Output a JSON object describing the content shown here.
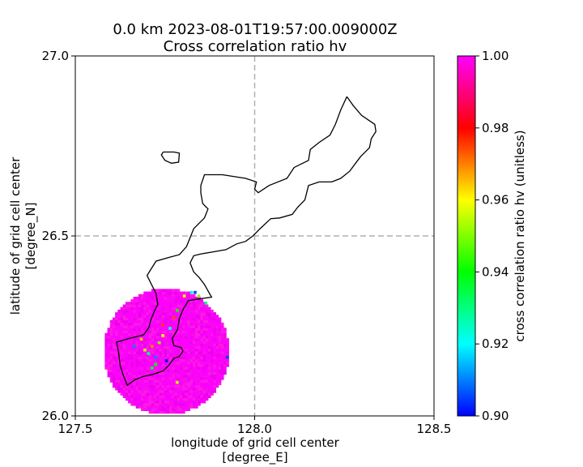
{
  "chart_data": {
    "type": "heatmap",
    "title_line1": "0.0 km 2023-08-01T19:57:00.009000Z",
    "title_line2": "Cross correlation ratio hv",
    "xlabel_line1": "longitude of grid cell center",
    "xlabel_line2": "[degree_E]",
    "ylabel_line1": "latitude of grid cell center",
    "ylabel_line2": "[degree_N]",
    "xlim": [
      127.5,
      128.5
    ],
    "ylim": [
      26.0,
      27.0
    ],
    "x_ticks": [
      127.5,
      128.0,
      128.5
    ],
    "x_tick_labels": [
      "127.5",
      "128.0",
      "128.5"
    ],
    "y_ticks": [
      26.0,
      26.5,
      27.0
    ],
    "y_tick_labels": [
      "26.0",
      "26.5",
      "27.0"
    ],
    "gridlines": [
      128.0,
      26.5
    ],
    "grid": "dashed at 128.0 E and 26.5 N",
    "radar_center": [
      127.75,
      26.175
    ],
    "radar_radius_deg": 0.175,
    "background_value": 1.0,
    "anomalies": [
      {
        "lon": 127.69,
        "lat": 26.18,
        "value": 0.955
      },
      {
        "lon": 127.7,
        "lat": 26.17,
        "value": 0.93
      },
      {
        "lon": 127.71,
        "lat": 26.19,
        "value": 0.97
      },
      {
        "lon": 127.72,
        "lat": 26.16,
        "value": 0.91
      },
      {
        "lon": 127.73,
        "lat": 26.2,
        "value": 0.95
      },
      {
        "lon": 127.72,
        "lat": 26.14,
        "value": 0.94
      },
      {
        "lon": 127.74,
        "lat": 26.22,
        "value": 0.96
      },
      {
        "lon": 127.76,
        "lat": 26.24,
        "value": 0.92
      },
      {
        "lon": 127.77,
        "lat": 26.27,
        "value": 0.975
      },
      {
        "lon": 127.78,
        "lat": 26.29,
        "value": 0.94
      },
      {
        "lon": 127.8,
        "lat": 26.33,
        "value": 0.96
      },
      {
        "lon": 127.82,
        "lat": 26.34,
        "value": 0.92
      },
      {
        "lon": 127.84,
        "lat": 26.33,
        "value": 0.95
      },
      {
        "lon": 127.86,
        "lat": 26.31,
        "value": 0.93
      },
      {
        "lon": 127.68,
        "lat": 26.21,
        "value": 0.965
      },
      {
        "lon": 127.66,
        "lat": 26.19,
        "value": 0.91
      },
      {
        "lon": 127.75,
        "lat": 26.15,
        "value": 0.9
      },
      {
        "lon": 127.78,
        "lat": 26.09,
        "value": 0.955
      },
      {
        "lon": 127.71,
        "lat": 26.13,
        "value": 0.935
      },
      {
        "lon": 127.83,
        "lat": 26.34,
        "value": 0.905
      },
      {
        "lon": 127.92,
        "lat": 26.16,
        "value": 0.905
      },
      {
        "lon": 127.74,
        "lat": 26.25,
        "value": 0.975
      }
    ],
    "colorbar": {
      "label": "cross correlation ratio hv (unitless)",
      "min": 0.9,
      "max": 1.0,
      "ticks": [
        0.9,
        0.92,
        0.94,
        0.96,
        0.98,
        1.0
      ],
      "tick_labels": [
        "0.90",
        "0.92",
        "0.94",
        "0.96",
        "0.98",
        "1.00"
      ],
      "colormap": "gist_rainbow_r"
    },
    "coastline": [
      [
        128.257,
        26.887
      ],
      [
        128.275,
        26.862
      ],
      [
        128.298,
        26.835
      ],
      [
        128.335,
        26.81
      ],
      [
        128.338,
        26.79
      ],
      [
        128.325,
        26.77
      ],
      [
        128.32,
        26.745
      ],
      [
        128.295,
        26.72
      ],
      [
        128.28,
        26.7
      ],
      [
        128.265,
        26.68
      ],
      [
        128.24,
        26.66
      ],
      [
        128.215,
        26.65
      ],
      [
        128.18,
        26.65
      ],
      [
        128.15,
        26.64
      ],
      [
        128.14,
        26.6
      ],
      [
        128.12,
        26.58
      ],
      [
        128.105,
        26.56
      ],
      [
        128.07,
        26.55
      ],
      [
        128.045,
        26.548
      ],
      [
        128.015,
        26.52
      ],
      [
        127.995,
        26.5
      ],
      [
        127.975,
        26.485
      ],
      [
        127.95,
        26.478
      ],
      [
        127.92,
        26.462
      ],
      [
        127.88,
        26.455
      ],
      [
        127.85,
        26.45
      ],
      [
        127.83,
        26.445
      ],
      [
        127.82,
        26.425
      ],
      [
        127.83,
        26.4
      ],
      [
        127.845,
        26.385
      ],
      [
        127.86,
        26.365
      ],
      [
        127.88,
        26.33
      ],
      [
        127.845,
        26.325
      ],
      [
        127.815,
        26.32
      ],
      [
        127.8,
        26.295
      ],
      [
        127.79,
        26.27
      ],
      [
        127.785,
        26.24
      ],
      [
        127.77,
        26.215
      ],
      [
        127.775,
        26.195
      ],
      [
        127.795,
        26.19
      ],
      [
        127.8,
        26.18
      ],
      [
        127.79,
        26.165
      ],
      [
        127.775,
        26.16
      ],
      [
        127.76,
        26.14
      ],
      [
        127.745,
        26.125
      ],
      [
        127.715,
        26.115
      ],
      [
        127.69,
        26.11
      ],
      [
        127.665,
        26.1
      ],
      [
        127.645,
        26.085
      ],
      [
        127.635,
        26.11
      ],
      [
        127.625,
        26.14
      ],
      [
        127.62,
        26.18
      ],
      [
        127.615,
        26.205
      ],
      [
        127.65,
        26.215
      ],
      [
        127.69,
        26.225
      ],
      [
        127.705,
        26.245
      ],
      [
        127.71,
        26.265
      ],
      [
        127.72,
        26.29
      ],
      [
        127.73,
        26.31
      ],
      [
        127.725,
        26.34
      ],
      [
        127.71,
        26.37
      ],
      [
        127.7,
        26.39
      ],
      [
        127.725,
        26.43
      ],
      [
        127.76,
        26.44
      ],
      [
        127.79,
        26.448
      ],
      [
        127.81,
        26.47
      ],
      [
        127.83,
        26.52
      ],
      [
        127.86,
        26.55
      ],
      [
        127.87,
        26.575
      ],
      [
        127.855,
        26.59
      ],
      [
        127.85,
        26.62
      ],
      [
        127.85,
        26.64
      ],
      [
        127.86,
        26.67
      ],
      [
        127.91,
        26.67
      ],
      [
        127.975,
        26.66
      ],
      [
        128.005,
        26.65
      ],
      [
        128.0,
        26.63
      ],
      [
        128.01,
        26.62
      ],
      [
        128.04,
        26.64
      ],
      [
        128.09,
        26.66
      ],
      [
        128.11,
        26.69
      ],
      [
        128.15,
        26.71
      ],
      [
        128.155,
        26.74
      ],
      [
        128.18,
        26.76
      ],
      [
        128.21,
        26.78
      ],
      [
        128.225,
        26.81
      ],
      [
        128.24,
        26.85
      ],
      [
        128.257,
        26.887
      ]
    ],
    "small_island": [
      [
        127.745,
        26.733
      ],
      [
        127.775,
        26.733
      ],
      [
        127.79,
        26.73
      ],
      [
        127.788,
        26.705
      ],
      [
        127.768,
        26.702
      ],
      [
        127.75,
        26.71
      ],
      [
        127.74,
        26.725
      ],
      [
        127.745,
        26.733
      ]
    ]
  }
}
